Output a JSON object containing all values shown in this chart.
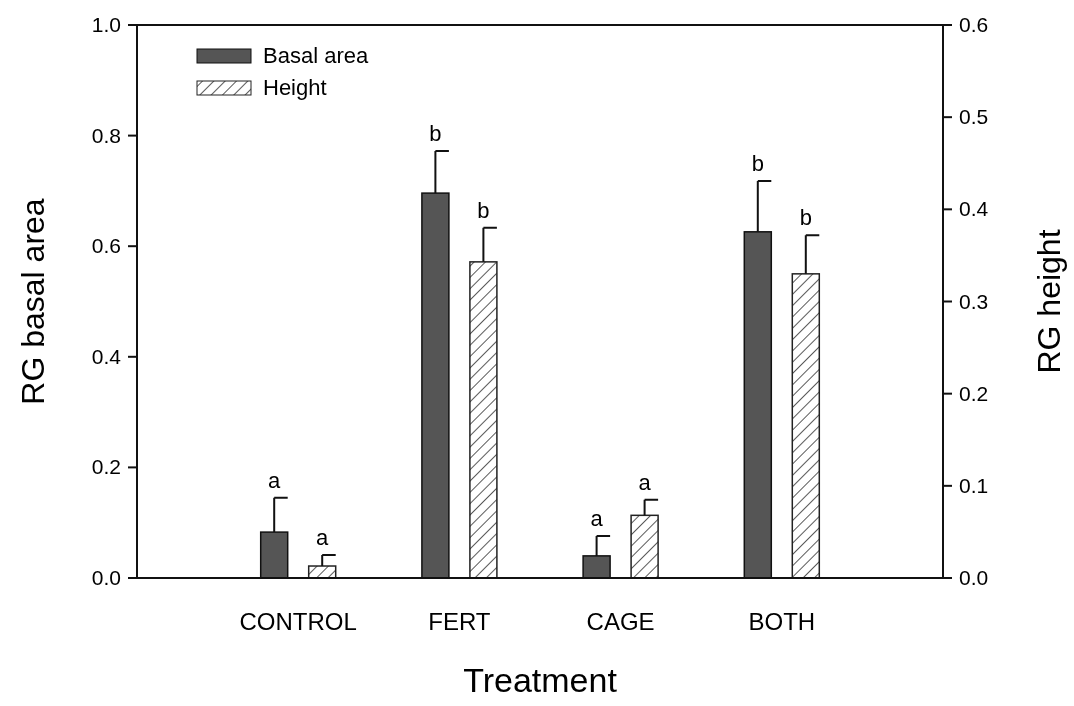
{
  "chart_data": {
    "type": "bar",
    "xlabel": "Treatment",
    "ylabel": "RG basal area",
    "y2label": "RG height",
    "categories": [
      "CONTROL",
      "FERT",
      "CAGE",
      "BOTH"
    ],
    "series": [
      {
        "name": "Basal area",
        "color": "#555555",
        "values": [
          0.083,
          0.696,
          0.04,
          0.626
        ],
        "errors": [
          0.062,
          0.076,
          0.036,
          0.092
        ],
        "value_labels": [
          "a",
          "b",
          "a",
          "b"
        ]
      },
      {
        "name": "Height",
        "color": "#222222",
        "axis": "y2",
        "values": [
          0.013,
          0.343,
          0.068,
          0.33
        ],
        "errors": [
          0.012,
          0.037,
          0.017,
          0.042
        ],
        "value_labels": [
          "a",
          "b",
          "a",
          "b"
        ]
      }
    ],
    "ylim": [
      0,
      1.0
    ],
    "yticks": [
      {
        "value": 0,
        "label": "0.0"
      },
      0.2,
      0.4,
      0.6,
      0.8,
      {
        "value": 1,
        "label": "1.0"
      }
    ],
    "y2lim": [
      0,
      0.6
    ],
    "y2ticks": [
      {
        "value": 0,
        "label": "0.0"
      },
      0.1,
      0.2,
      0.3,
      0.4,
      0.5,
      0.6
    ],
    "legend": "top left",
    "grid": false
  }
}
